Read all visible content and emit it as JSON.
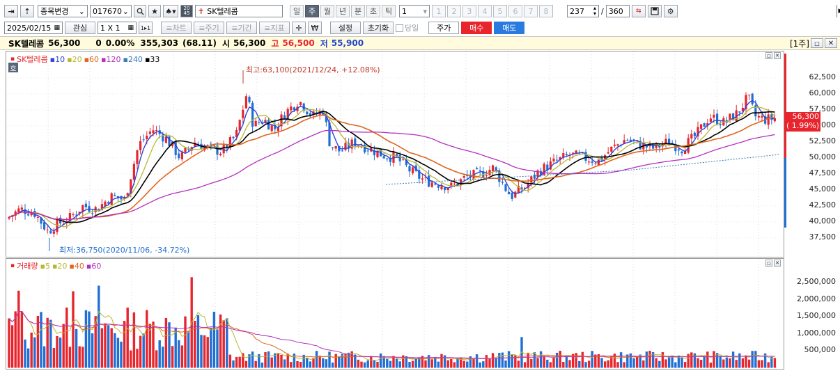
{
  "toolbar1": {
    "mode_icons": [
      "→",
      "↥"
    ],
    "stock_change_label": "종목변경",
    "stock_code": "017670",
    "stock_name": "SK텔레콤",
    "side_badge": "20\n45",
    "periods": [
      {
        "label": "일",
        "active": false
      },
      {
        "label": "주",
        "active": true
      },
      {
        "label": "월",
        "active": false
      },
      {
        "label": "년",
        "active": false
      },
      {
        "label": "분",
        "active": false
      },
      {
        "label": "초",
        "active": false
      },
      {
        "label": "틱",
        "active": false
      }
    ],
    "interval_value": "1",
    "numbers": [
      "1",
      "2",
      "3",
      "4",
      "5",
      "6",
      "7",
      "8"
    ],
    "count_value": "237",
    "total_value": "360"
  },
  "toolbar2": {
    "date_value": "2025/02/15",
    "watch_label": "관심",
    "grid_value": "1 X 1",
    "grid_small": "1▸1",
    "chart_btn": "≡차트",
    "period_btn": "≡주기",
    "range_btn": "≡기간",
    "indicator_btn": "≡지표",
    "settings_btn": "설정",
    "reset_btn": "초기화",
    "sameday_label": "당일",
    "price_tab": "주가",
    "buy_tab": "매수",
    "sell_tab": "매도"
  },
  "info_bar": {
    "name": "SK텔레콤",
    "price": "56,300",
    "change": "0",
    "change_pct": "0.00%",
    "volume": "355,303",
    "volume_pct": "(68.11)",
    "open_label": "시",
    "open": "56,300",
    "high_label": "고",
    "high": "56,500",
    "low_label": "저",
    "low": "55,900",
    "window_label": "[1주]"
  },
  "price_pane": {
    "legend_name": "SK텔레콤",
    "legend_mas": [
      "10",
      "20",
      "60",
      "120",
      "240",
      "33"
    ],
    "side_tag": "호",
    "max_annotation": "최고:63,100(2021/12/24, +12.08%)",
    "min_annotation": "최저:36,750(2020/11/06, -34.72%)",
    "y_labels": [
      "62,500",
      "60,000",
      "57,500",
      "55,000",
      "52,500",
      "50,000",
      "47,500",
      "45,000",
      "42,500",
      "40,000",
      "37,500"
    ],
    "current_price_tag": "56,300",
    "current_pct_tag": "( 1.99%)"
  },
  "volume_pane": {
    "legend_name": "거래량",
    "legend_mas": [
      "5",
      "20",
      "40",
      "60"
    ],
    "y_labels": [
      "2,500,000",
      "2,000,000",
      "1,500,000",
      "1,000,000",
      "500,000"
    ]
  },
  "colors": {
    "up": "#e8242c",
    "down": "#1f6fd4",
    "ma10": "#2d46d6",
    "ma20": "#b8b832",
    "ma60": "#e0651e",
    "ma120": "#b530c0",
    "ma240": "#3a7ab8",
    "ma33": "#000000",
    "buy_bg": "#e8242c",
    "sell_bg": "#2a7be0"
  }
}
